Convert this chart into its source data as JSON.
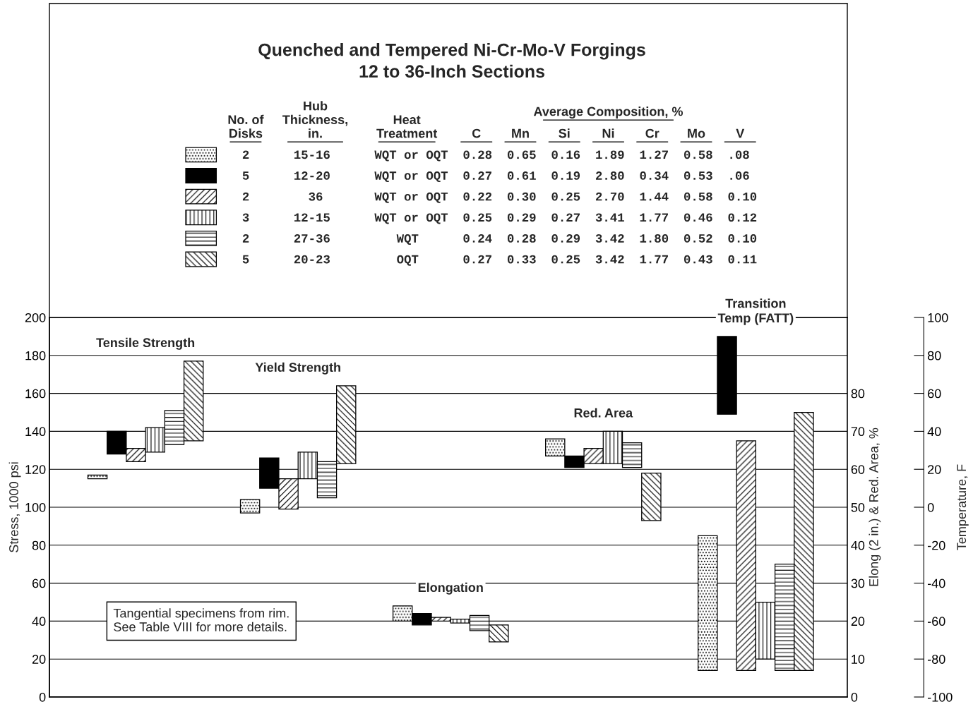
{
  "chart_data": {
    "type": "bar",
    "title": "Quenched and Tempered Ni-Cr-Mo-V Forgings\n12 to 36-Inch Sections",
    "categories": [
      "Tensile Strength",
      "Yield Strength",
      "Elongation",
      "Red. Area",
      "Transition\nTemp (FATT)"
    ],
    "ylabel": "Stress, 1000 psi",
    "y2label": "Elong (2 in.) & Red. Area, %",
    "y3label": "Temperature, F",
    "ylim": [
      0,
      200
    ],
    "yticks": [
      0,
      20,
      40,
      60,
      80,
      100,
      120,
      140,
      160,
      180,
      200
    ],
    "y2lim": [
      0,
      100
    ],
    "y2ticks": [
      0,
      10,
      20,
      30,
      40,
      50,
      60,
      70,
      80
    ],
    "y3lim": [
      -100,
      100
    ],
    "y3ticks": [
      -100,
      -80,
      -60,
      -40,
      -20,
      0,
      20,
      40,
      60,
      80,
      100
    ],
    "grid": "y",
    "legend": "top",
    "annotations": [
      "No. of\nDisks",
      "Hub\nThickness,\nin.",
      "Heat\nTreatment",
      "Average Composition, %",
      "C",
      "Mn",
      "Si",
      "Ni",
      "Cr",
      "Mo",
      "V",
      "Tangential specimens from rim.\nSee Table VIII for more details."
    ],
    "series": [
      {
        "name": "2  15-16  WQT or OQT  0.28  0.65  0.16  1.89  1.27  0.58  .08",
        "color": "#000000",
        "axis": "y",
        "values": [
          2,
          7,
          null,
          null,
          null
        ],
        "base": [
          115,
          97,
          null,
          null,
          null
        ]
      },
      {
        "name": "5  12-20  WQT or OQT  0.27  0.61  0.19  2.80  0.34  0.53  .06",
        "color": "#000000",
        "axis": "y",
        "values": [
          12,
          16,
          null,
          null,
          null
        ],
        "base": [
          128,
          110,
          null,
          null,
          null
        ]
      },
      {
        "name": "2  36  WQT or OQT  0.22  0.30  0.25  2.70  1.44  0.58  0.10",
        "color": "#000000",
        "axis": "y",
        "values": [
          7,
          16,
          null,
          null,
          null
        ],
        "base": [
          124,
          99,
          null,
          null,
          null
        ]
      },
      {
        "name": "3  12-15  WQT or OQT  0.25  0.29  0.27  3.41  1.77  0.46  0.12",
        "color": "#000000",
        "axis": "y",
        "values": [
          13,
          14,
          null,
          null,
          null
        ],
        "base": [
          129,
          115,
          null,
          null,
          null
        ]
      },
      {
        "name": "2  27-36  WQT  0.24  0.28  0.29  3.42  1.80  0.52  0.10",
        "color": "#000000",
        "axis": "y",
        "values": [
          18,
          19,
          null,
          null,
          null
        ],
        "base": [
          133,
          105,
          null,
          null,
          null
        ]
      },
      {
        "name": "5  20-23  OQT  0.27  0.33  0.25  3.42  1.77  0.43  0.11",
        "color": "#000000",
        "axis": "y",
        "values": [
          42,
          41,
          null,
          null,
          null
        ],
        "base": [
          135,
          123,
          null,
          null,
          null
        ]
      },
      {
        "color": "#000000",
        "axis": "y2",
        "values": [
          null,
          null,
          4,
          4.5,
          null
        ],
        "base": [
          null,
          null,
          20,
          63.5,
          null
        ]
      },
      {
        "color": "#000000",
        "axis": "y2",
        "values": [
          null,
          null,
          3,
          3,
          null
        ],
        "base": [
          null,
          null,
          19,
          60.5,
          null
        ]
      },
      {
        "color": "#000000",
        "axis": "y2",
        "values": [
          null,
          null,
          1,
          4,
          null
        ],
        "base": [
          null,
          null,
          20,
          61.5,
          null
        ]
      },
      {
        "color": "#000000",
        "axis": "y2",
        "values": [
          null,
          null,
          1,
          8.5,
          null
        ],
        "base": [
          null,
          null,
          19.5,
          61.5,
          null
        ]
      },
      {
        "color": "#000000",
        "axis": "y2",
        "values": [
          null,
          null,
          4,
          6.5,
          null
        ],
        "base": [
          null,
          null,
          17.5,
          60.5,
          null
        ]
      },
      {
        "color": "#000000",
        "axis": "y2",
        "values": [
          null,
          null,
          4.5,
          12.5,
          null
        ],
        "base": [
          null,
          null,
          14.5,
          46.5,
          null
        ]
      },
      {
        "color": "#000000",
        "axis": "y3",
        "values": [
          null,
          null,
          null,
          null,
          71
        ],
        "base": [
          null,
          null,
          null,
          null,
          -86
        ]
      },
      {
        "color": "#000000",
        "axis": "y3",
        "values": [
          null,
          null,
          null,
          null,
          41
        ],
        "base": [
          null,
          null,
          null,
          null,
          49
        ]
      },
      {
        "color": "#000000",
        "axis": "y3",
        "values": [
          null,
          null,
          null,
          null,
          121
        ],
        "base": [
          null,
          null,
          null,
          null,
          -86
        ]
      },
      {
        "color": "#000000",
        "axis": "y3",
        "values": [
          null,
          null,
          null,
          null,
          30
        ],
        "base": [
          null,
          null,
          null,
          null,
          -80
        ]
      },
      {
        "color": "#000000",
        "axis": "y3",
        "values": [
          null,
          null,
          null,
          null,
          56
        ],
        "base": [
          null,
          null,
          null,
          null,
          -86
        ]
      },
      {
        "color": "#000000",
        "axis": "y3",
        "values": [
          null,
          null,
          null,
          null,
          136
        ],
        "base": [
          null,
          null,
          null,
          null,
          -86
        ]
      }
    ]
  }
}
